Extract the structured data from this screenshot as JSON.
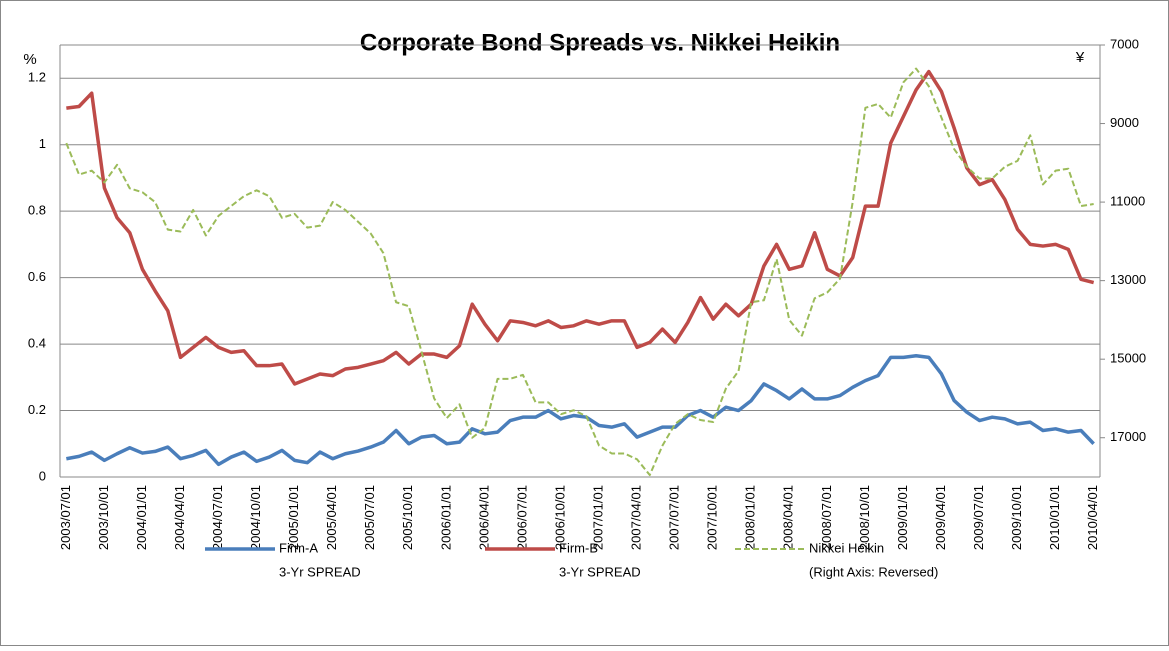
{
  "chart_data": {
    "type": "line",
    "title": "Corporate Bond Spreads vs. Nikkei Heikin",
    "y_unit": "%",
    "y2_unit": "¥",
    "categories": [
      "2003/07/01",
      null,
      null,
      "2003/10/01",
      null,
      null,
      "2004/01/01",
      null,
      null,
      "2004/04/01",
      null,
      null,
      "2004/07/01",
      null,
      null,
      "2004/10/01",
      null,
      null,
      "2005/01/01",
      null,
      null,
      "2005/04/01",
      null,
      null,
      "2005/07/01",
      null,
      null,
      "2005/10/01",
      null,
      null,
      "2006/01/01",
      null,
      null,
      "2006/04/01",
      null,
      null,
      "2006/07/01",
      null,
      null,
      "2006/10/01",
      null,
      null,
      "2007/01/01",
      null,
      null,
      "2007/04/01",
      null,
      null,
      "2007/07/01",
      null,
      null,
      "2007/10/01",
      null,
      null,
      "2008/01/01",
      null,
      null,
      "2008/04/01",
      null,
      null,
      "2008/07/01",
      null,
      null,
      "2008/10/01",
      null,
      null,
      "2009/01/01",
      null,
      null,
      "2009/04/01",
      null,
      null,
      "2009/07/01",
      null,
      null,
      "2009/10/01",
      null,
      null,
      "2010/01/01",
      null,
      null,
      "2010/04/01"
    ],
    "series": [
      {
        "name": "Firm-A",
        "name_line2": "3-Yr SPREAD",
        "color": "#4a7ebb",
        "dashed": false,
        "axis": "y",
        "values": [
          0.055,
          0.062,
          0.075,
          0.05,
          0.07,
          0.088,
          0.072,
          0.077,
          0.09,
          0.055,
          0.065,
          0.08,
          0.038,
          0.06,
          0.075,
          0.047,
          0.06,
          0.08,
          0.05,
          0.043,
          0.075,
          0.055,
          0.07,
          0.078,
          0.09,
          0.105,
          0.14,
          0.1,
          0.12,
          0.125,
          0.1,
          0.105,
          0.145,
          0.13,
          0.135,
          0.17,
          0.18,
          0.18,
          0.2,
          0.175,
          0.185,
          0.18,
          0.155,
          0.15,
          0.16,
          0.12,
          0.135,
          0.15,
          0.15,
          0.185,
          0.2,
          0.18,
          0.21,
          0.2,
          0.23,
          0.28,
          0.26,
          0.235,
          0.265,
          0.235,
          0.235,
          0.245,
          0.27,
          0.29,
          0.305,
          0.36,
          0.36,
          0.365,
          0.36,
          0.31,
          0.23,
          0.195,
          0.17,
          0.18,
          0.175,
          0.16,
          0.165,
          0.14,
          0.145,
          0.135,
          0.14,
          0.1
        ]
      },
      {
        "name": "Firm-B",
        "name_line2": "3-Yr SPREAD",
        "color": "#be4b48",
        "dashed": false,
        "axis": "y",
        "values": [
          1.11,
          1.115,
          1.155,
          0.87,
          0.78,
          0.735,
          0.625,
          0.56,
          0.5,
          0.36,
          0.39,
          0.42,
          0.39,
          0.375,
          0.38,
          0.335,
          0.335,
          0.34,
          0.28,
          0.295,
          0.31,
          0.305,
          0.325,
          0.33,
          0.34,
          0.35,
          0.375,
          0.34,
          0.37,
          0.37,
          0.36,
          0.395,
          0.52,
          0.46,
          0.41,
          0.47,
          0.465,
          0.455,
          0.47,
          0.45,
          0.455,
          0.47,
          0.46,
          0.47,
          0.47,
          0.39,
          0.405,
          0.445,
          0.405,
          0.465,
          0.54,
          0.475,
          0.52,
          0.485,
          0.52,
          0.635,
          0.7,
          0.625,
          0.635,
          0.735,
          0.625,
          0.605,
          0.66,
          0.815,
          0.815,
          1.005,
          1.085,
          1.165,
          1.22,
          1.16,
          1.05,
          0.93,
          0.88,
          0.895,
          0.835,
          0.745,
          0.7,
          0.695,
          0.7,
          0.685,
          0.595,
          0.585
        ]
      },
      {
        "name": "Nikkei Heikin",
        "name_line2": "(Right Axis: Reversed)",
        "color": "#9bbb59",
        "dashed": true,
        "axis": "y2",
        "values": [
          9500,
          10300,
          10200,
          10500,
          10050,
          10650,
          10750,
          11000,
          11700,
          11750,
          11200,
          11850,
          11350,
          11100,
          10850,
          10700,
          10850,
          11400,
          11300,
          11650,
          11600,
          11000,
          11200,
          11500,
          11800,
          12300,
          13550,
          13650,
          14800,
          16000,
          16500,
          16150,
          17000,
          16750,
          15500,
          15500,
          15400,
          16100,
          16100,
          16400,
          16300,
          16450,
          17200,
          17400,
          17400,
          17550,
          17950,
          17200,
          16650,
          16400,
          16550,
          16600,
          15750,
          15300,
          13550,
          13500,
          12450,
          14000,
          14400,
          13450,
          13300,
          12950,
          11000,
          8600,
          8500,
          8850,
          7950,
          7600,
          8050,
          8850,
          9650,
          10100,
          10400,
          10400,
          10100,
          9950,
          9300,
          10550,
          10200,
          10150,
          11100,
          11050
        ]
      }
    ],
    "ylim": [
      0,
      1.3
    ],
    "yticks": [
      0,
      0.2,
      0.4,
      0.6,
      0.8,
      1,
      1.2
    ],
    "y2lim": [
      18000,
      7000
    ],
    "y2ticks": [
      7000,
      9000,
      11000,
      13000,
      15000,
      17000
    ],
    "grid": true,
    "legend": "bottom"
  }
}
